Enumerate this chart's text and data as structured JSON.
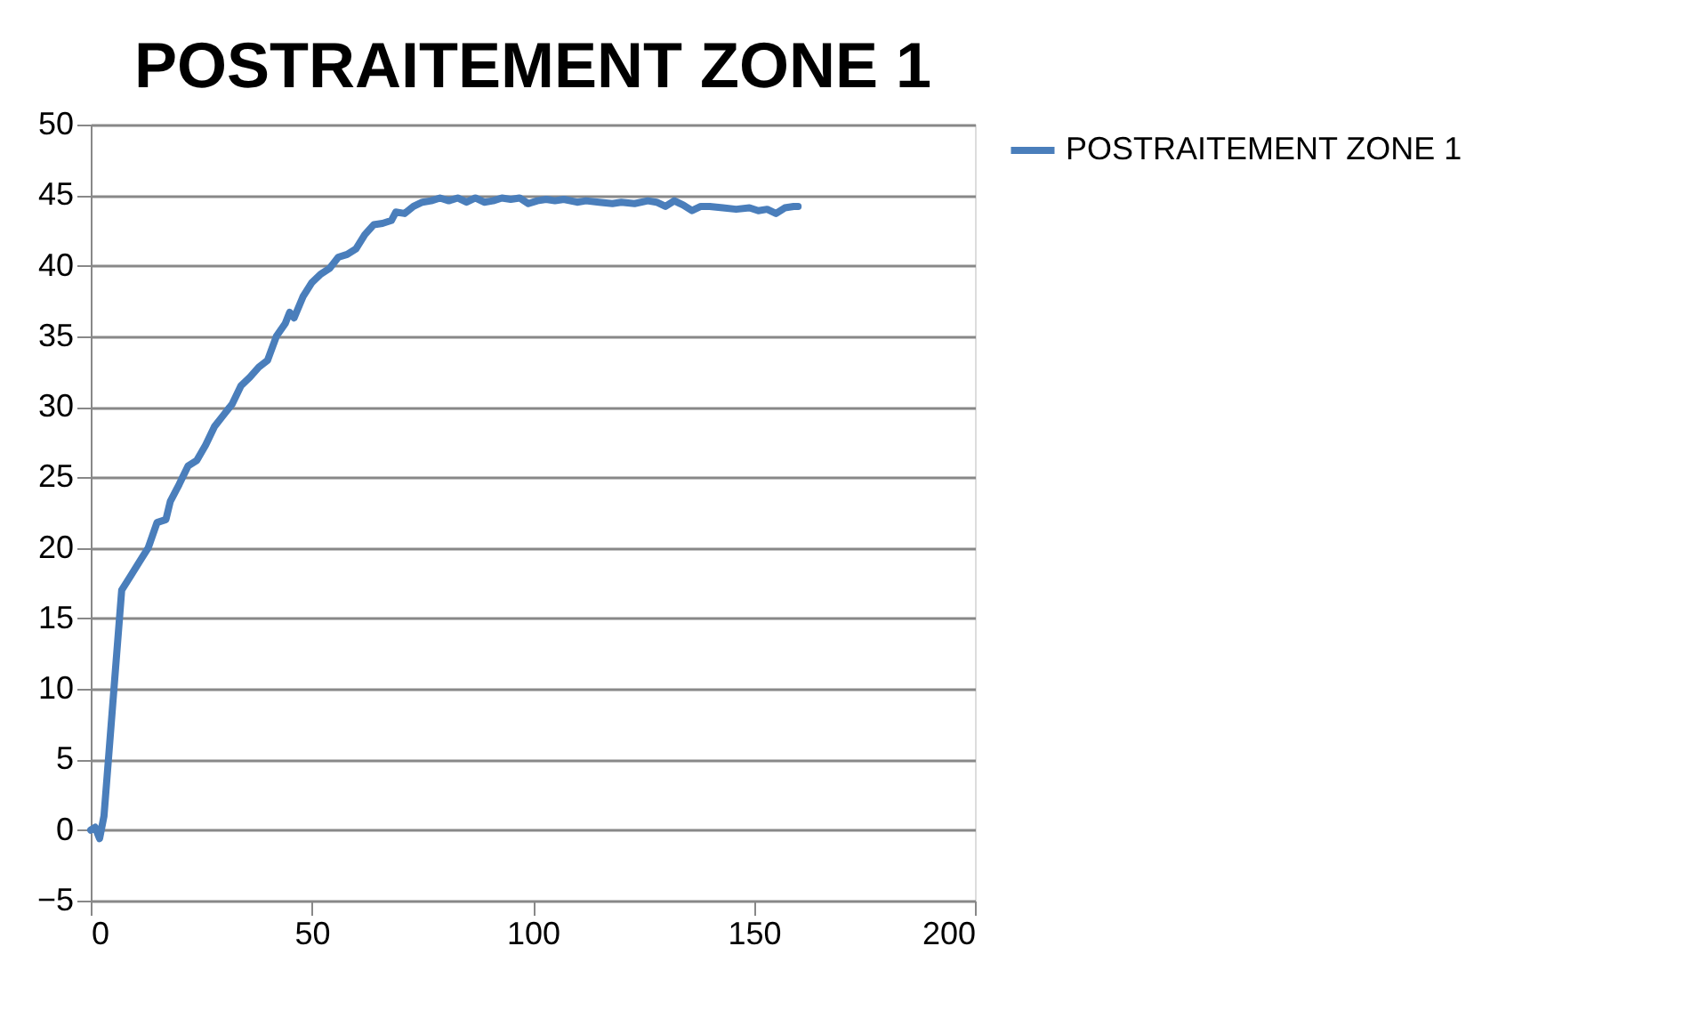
{
  "chart_data": {
    "type": "line",
    "title": "POSTRAITEMENT ZONE 1",
    "x": [
      0,
      1,
      2,
      3,
      5,
      7,
      9,
      11,
      13,
      15,
      17,
      18,
      20,
      22,
      24,
      26,
      28,
      30,
      32,
      34,
      36,
      38,
      40,
      42,
      44,
      45,
      46,
      48,
      50,
      52,
      54,
      56,
      58,
      60,
      62,
      64,
      66,
      68,
      69,
      71,
      73,
      75,
      77,
      79,
      81,
      83,
      85,
      87,
      89,
      91,
      93,
      95,
      97,
      99,
      101,
      103,
      105,
      107,
      110,
      112,
      115,
      118,
      120,
      123,
      126,
      128,
      130,
      132,
      134,
      136,
      138,
      140,
      143,
      146,
      149,
      151,
      153,
      155,
      157,
      159,
      160
    ],
    "series": [
      {
        "name": "POSTRAITEMENT ZONE 1",
        "color": "#4a7ebb",
        "values": [
          0,
          0.2,
          -0.6,
          1,
          9,
          17,
          18,
          19,
          20,
          21.8,
          22,
          23.3,
          24.5,
          25.8,
          26.2,
          27.3,
          28.6,
          29.4,
          30.2,
          31.5,
          32.1,
          32.8,
          33.3,
          35,
          35.9,
          36.7,
          36.3,
          37.8,
          38.8,
          39.4,
          39.8,
          40.6,
          40.8,
          41.2,
          42.2,
          42.9,
          43,
          43.2,
          43.8,
          43.7,
          44.2,
          44.5,
          44.6,
          44.8,
          44.6,
          44.8,
          44.5,
          44.8,
          44.5,
          44.6,
          44.8,
          44.7,
          44.8,
          44.4,
          44.6,
          44.7,
          44.6,
          44.7,
          44.5,
          44.6,
          44.5,
          44.4,
          44.5,
          44.4,
          44.6,
          44.5,
          44.2,
          44.6,
          44.3,
          43.9,
          44.2,
          44.2,
          44.1,
          44,
          44.1,
          43.9,
          44,
          43.7,
          44.1,
          44.2,
          44.2
        ]
      }
    ],
    "xlim": [
      0,
      200
    ],
    "xticks": [
      0,
      50,
      100,
      150,
      200
    ],
    "ylim": [
      -5,
      50
    ],
    "yticks": [
      -5,
      0,
      5,
      10,
      15,
      20,
      25,
      30,
      35,
      40,
      45,
      50
    ],
    "grid": "y",
    "legend": "right",
    "marker": "none",
    "line_style": "solid"
  }
}
